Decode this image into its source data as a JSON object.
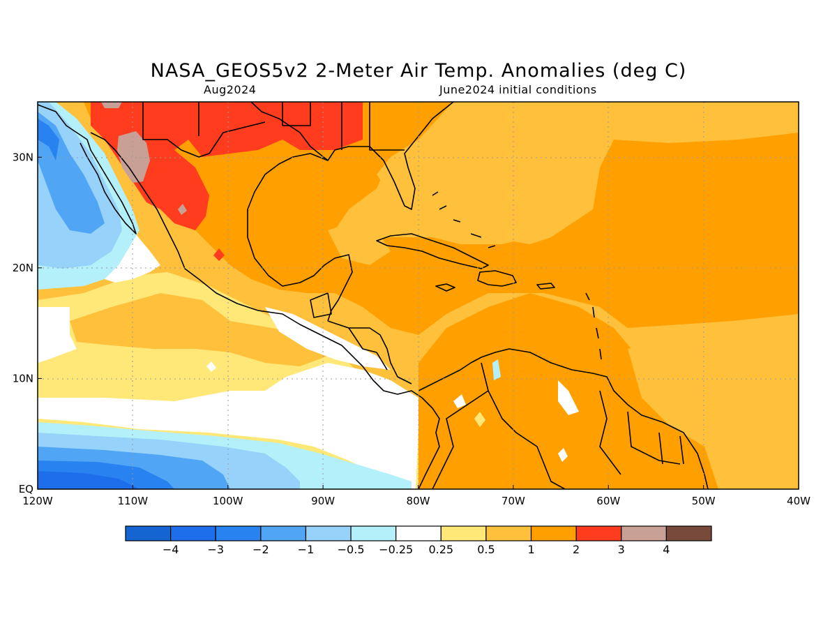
{
  "title": "NASA_GEOS5v2 2-Meter Air Temp. Anomalies (deg C)",
  "valid_month": "Aug2024",
  "initial_conditions": "June2024 initial conditions",
  "map": {
    "lon_range": [
      -120,
      -40
    ],
    "lat_range": [
      0,
      35
    ],
    "x_ticks": [
      {
        "lon": -120,
        "label": "120W"
      },
      {
        "lon": -110,
        "label": "110W"
      },
      {
        "lon": -100,
        "label": "100W"
      },
      {
        "lon": -90,
        "label": "90W"
      },
      {
        "lon": -80,
        "label": "80W"
      },
      {
        "lon": -70,
        "label": "70W"
      },
      {
        "lon": -60,
        "label": "60W"
      },
      {
        "lon": -50,
        "label": "50W"
      },
      {
        "lon": -40,
        "label": "40W"
      }
    ],
    "y_ticks": [
      {
        "lat": 0,
        "label": "EQ"
      },
      {
        "lat": 10,
        "label": "10N"
      },
      {
        "lat": 20,
        "label": "20N"
      },
      {
        "lat": 30,
        "label": "30N"
      }
    ],
    "gridlines": true
  },
  "colorbar": {
    "colors": [
      "#1464d2",
      "#1e6eeb",
      "#2882f0",
      "#50a5f5",
      "#96d2fa",
      "#b4f0fa",
      "#ffffff",
      "#ffe878",
      "#ffc03c",
      "#ffa000",
      "#ff3c1e",
      "#c8a096",
      "#784a3c"
    ],
    "labels": [
      "-4",
      "-3",
      "-2",
      "-1",
      "-0.5",
      "-0.25",
      "0.25",
      "0.5",
      "1",
      "2",
      "3",
      "4"
    ]
  },
  "colors": {
    "ocean_base": "#ffc03c",
    "land_outline": "#000000"
  }
}
